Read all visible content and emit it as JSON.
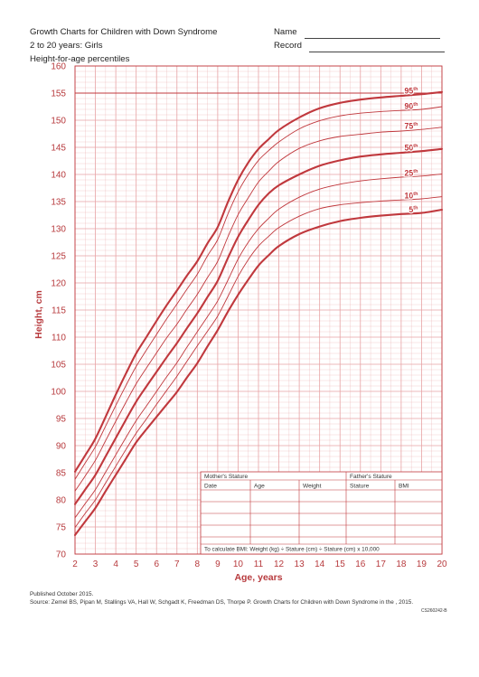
{
  "header": {
    "title_lines": [
      "Growth Charts for Children with Down Syndrome",
      "2 to 20 years: Girls",
      "Height-for-age percentiles"
    ],
    "name_label": "Name",
    "record_label": "Record"
  },
  "chart_data": {
    "type": "line",
    "xlabel": "Age, years",
    "ylabel": "Height, cm",
    "xlim": [
      2,
      20
    ],
    "ylim": [
      70,
      160
    ],
    "x_ticks": [
      2,
      3,
      4,
      5,
      6,
      7,
      8,
      9,
      10,
      11,
      12,
      13,
      14,
      15,
      16,
      17,
      18,
      19,
      20
    ],
    "y_ticks": [
      70,
      75,
      80,
      85,
      90,
      95,
      100,
      105,
      110,
      115,
      120,
      125,
      130,
      135,
      140,
      145,
      150,
      155,
      160
    ],
    "grid": true,
    "x": [
      2,
      2.5,
      3,
      3.5,
      4,
      4.5,
      5,
      5.5,
      6,
      6.5,
      7,
      7.5,
      8,
      8.5,
      9,
      9.5,
      10,
      10.5,
      11,
      11.5,
      12,
      13,
      14,
      15,
      16,
      17,
      18,
      19,
      20
    ],
    "series": [
      {
        "name": "95",
        "values": [
          85.2,
          88.2,
          91.3,
          95.3,
          99.4,
          103.3,
          107.0,
          110.0,
          113.0,
          115.9,
          118.6,
          121.4,
          124.0,
          127.3,
          130.3,
          134.9,
          139.0,
          142.2,
          144.7,
          146.5,
          148.2,
          150.5,
          152.2,
          153.2,
          153.8,
          154.2,
          154.5,
          154.8,
          155.2
        ],
        "weight": "bold"
      },
      {
        "name": "90",
        "values": [
          83.8,
          86.8,
          89.8,
          93.6,
          97.4,
          101.1,
          104.6,
          107.6,
          110.5,
          113.4,
          116.1,
          118.9,
          121.6,
          125.0,
          128.0,
          132.7,
          136.8,
          140.0,
          142.6,
          144.4,
          146.0,
          148.4,
          149.9,
          150.8,
          151.3,
          151.6,
          151.8,
          152.0,
          152.5
        ],
        "weight": "thin"
      },
      {
        "name": "75",
        "values": [
          81.6,
          84.4,
          87.3,
          90.9,
          94.5,
          98.0,
          101.4,
          104.3,
          107.1,
          109.9,
          112.4,
          115.2,
          117.9,
          121.0,
          124.0,
          128.5,
          132.6,
          135.7,
          138.6,
          140.6,
          142.4,
          144.8,
          146.2,
          147.0,
          147.4,
          147.8,
          148.0,
          148.3,
          148.7
        ],
        "weight": "thin"
      },
      {
        "name": "50",
        "values": [
          79.2,
          81.9,
          84.6,
          88.0,
          91.4,
          94.8,
          98.1,
          100.9,
          103.6,
          106.3,
          108.9,
          111.7,
          114.4,
          117.4,
          120.4,
          124.6,
          128.5,
          131.6,
          134.4,
          136.5,
          138.0,
          140.0,
          141.6,
          142.6,
          143.3,
          143.7,
          144.0,
          144.3,
          144.7
        ],
        "weight": "bold"
      },
      {
        "name": "25",
        "values": [
          76.7,
          79.3,
          81.9,
          85.1,
          88.3,
          91.5,
          94.6,
          97.3,
          100.0,
          102.7,
          105.3,
          108.2,
          111.0,
          113.8,
          116.7,
          120.5,
          124.4,
          127.5,
          130.0,
          131.9,
          133.6,
          135.8,
          137.3,
          138.2,
          138.8,
          139.2,
          139.5,
          139.7,
          140.1
        ],
        "weight": "thin"
      },
      {
        "name": "10",
        "values": [
          74.9,
          77.5,
          80.0,
          83.1,
          86.2,
          89.3,
          92.3,
          94.9,
          97.6,
          100.2,
          102.8,
          105.6,
          108.4,
          111.1,
          113.9,
          117.5,
          121.2,
          124.3,
          126.8,
          128.6,
          130.2,
          132.3,
          133.7,
          134.4,
          134.8,
          135.1,
          135.3,
          135.5,
          135.9
        ],
        "weight": "thin"
      },
      {
        "name": "5",
        "values": [
          73.5,
          76.0,
          78.5,
          81.6,
          84.6,
          87.6,
          90.6,
          93.0,
          95.3,
          97.6,
          99.9,
          102.6,
          105.2,
          108.3,
          111.3,
          114.7,
          117.8,
          120.6,
          123.2,
          125.1,
          126.8,
          129.0,
          130.4,
          131.4,
          132.0,
          132.4,
          132.7,
          132.9,
          133.5
        ],
        "weight": "bold"
      }
    ],
    "percentile_labels": [
      "95",
      "90",
      "75",
      "50",
      "25",
      "10",
      "5"
    ],
    "percentile_suffix": "th",
    "line_color": "#c0383d",
    "grid_color": "#e7a3a5",
    "axis_label_color": "#b73a3d"
  },
  "record_table": {
    "mother_stature_label": "Mother's Stature",
    "father_stature_label": "Father's Stature",
    "columns": [
      "Date",
      "Age",
      "Weight",
      "Stature",
      "BMI"
    ],
    "empty_rows": 4,
    "bmi_formula": "To calculate BMI: Weight (kg) ÷ Stature (cm) ÷ Stature (cm) x 10,000"
  },
  "footer": {
    "published": "Published October 2015.",
    "source": "Source: Zemel BS, Pipan M, Stallings VA, Hall W, Schgadt K, Freedman DS, Thorpe P. Growth Charts for Children with Down Syndrome in the , 2015.",
    "code": "CS260242-B"
  }
}
